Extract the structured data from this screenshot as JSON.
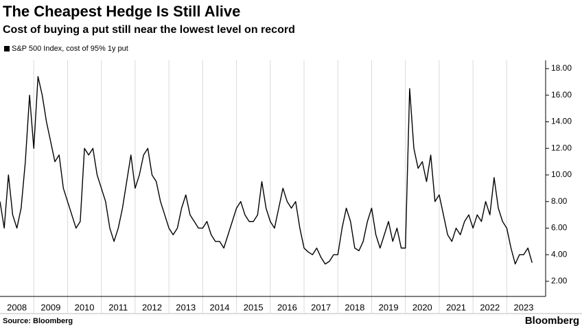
{
  "chart_data": {
    "type": "line",
    "title": "The Cheapest Hedge Is Still Alive",
    "subtitle": "Cost of buying a put still near the lowest level on record",
    "source": "Source: Bloomberg",
    "brand": "Bloomberg",
    "categories": [
      "2008",
      "2009",
      "2010",
      "2011",
      "2012",
      "2013",
      "2014",
      "2015",
      "2016",
      "2017",
      "2018",
      "2019",
      "2020",
      "2021",
      "2022",
      "2023"
    ],
    "x": [
      2008,
      2008.125,
      2008.25,
      2008.375,
      2008.5,
      2008.625,
      2008.75,
      2008.875,
      2009,
      2009.125,
      2009.25,
      2009.375,
      2009.5,
      2009.625,
      2009.75,
      2009.875,
      2010,
      2010.125,
      2010.25,
      2010.375,
      2010.5,
      2010.625,
      2010.75,
      2010.875,
      2011,
      2011.125,
      2011.25,
      2011.375,
      2011.5,
      2011.625,
      2011.75,
      2011.875,
      2012,
      2012.125,
      2012.25,
      2012.375,
      2012.5,
      2012.625,
      2012.75,
      2012.875,
      2013,
      2013.125,
      2013.25,
      2013.375,
      2013.5,
      2013.625,
      2013.75,
      2013.875,
      2014,
      2014.125,
      2014.25,
      2014.375,
      2014.5,
      2014.625,
      2014.75,
      2014.875,
      2015,
      2015.125,
      2015.25,
      2015.375,
      2015.5,
      2015.625,
      2015.75,
      2015.875,
      2016,
      2016.125,
      2016.25,
      2016.375,
      2016.5,
      2016.625,
      2016.75,
      2016.875,
      2017,
      2017.125,
      2017.25,
      2017.375,
      2017.5,
      2017.625,
      2017.75,
      2017.875,
      2018,
      2018.125,
      2018.25,
      2018.375,
      2018.5,
      2018.625,
      2018.75,
      2018.875,
      2019,
      2019.125,
      2019.25,
      2019.375,
      2019.5,
      2019.625,
      2019.75,
      2019.875,
      2020,
      2020.125,
      2020.25,
      2020.375,
      2020.5,
      2020.625,
      2020.75,
      2020.875,
      2021,
      2021.125,
      2021.25,
      2021.375,
      2021.5,
      2021.625,
      2021.75,
      2021.875,
      2022,
      2022.125,
      2022.25,
      2022.375,
      2022.5,
      2022.625,
      2022.75,
      2022.875,
      2023,
      2023.125,
      2023.25,
      2023.375,
      2023.5,
      2023.625,
      2023.75
    ],
    "series": [
      {
        "name": "S&P 500 Index, cost of 95% 1y put",
        "color": "#000000",
        "values": [
          8,
          6,
          10,
          7,
          6,
          7.5,
          11,
          16,
          12,
          17.4,
          16,
          14,
          12.5,
          11,
          11.5,
          9,
          8,
          7,
          6,
          6.5,
          12,
          11.5,
          12,
          10,
          9,
          8,
          6,
          5,
          6,
          7.5,
          9.5,
          11.5,
          9,
          10,
          11.5,
          12,
          10,
          9.5,
          8,
          7,
          6,
          5.5,
          6,
          7.5,
          8.5,
          7,
          6.5,
          6,
          6,
          6.5,
          5.5,
          5,
          5,
          4.5,
          5.5,
          6.5,
          7.5,
          8,
          7,
          6.5,
          6.5,
          7,
          9.5,
          7.5,
          6.5,
          6,
          7.5,
          9,
          8,
          7.5,
          8,
          6,
          4.5,
          4.2,
          4,
          4.5,
          3.8,
          3.3,
          3.5,
          4,
          4,
          6,
          7.5,
          6.5,
          4.5,
          4.3,
          5,
          6.5,
          7.5,
          5.5,
          4.5,
          5.5,
          6.5,
          5,
          6,
          4.5,
          4.5,
          16.5,
          12,
          10.5,
          11,
          9.5,
          11.5,
          8,
          8.5,
          7,
          5.5,
          5,
          6,
          5.5,
          6.5,
          7,
          6,
          7,
          6.5,
          8,
          7,
          9.8,
          7.5,
          6.5,
          6,
          4.5,
          3.3,
          4,
          4,
          4.5,
          3.4
        ]
      }
    ],
    "xlim": [
      2008,
      2024.15
    ],
    "ylim": [
      0.86,
      18.62
    ],
    "yticks": [
      {
        "value": 2,
        "label": "2.00"
      },
      {
        "value": 4,
        "label": "4.00"
      },
      {
        "value": 6,
        "label": "6.00"
      },
      {
        "value": 8,
        "label": "8.00"
      },
      {
        "value": 10,
        "label": "10.00"
      },
      {
        "value": 12,
        "label": "12.00"
      },
      {
        "value": 14,
        "label": "14.00"
      },
      {
        "value": 16,
        "label": "16.00"
      },
      {
        "value": 18,
        "label": "18.00"
      }
    ],
    "grid": true
  }
}
